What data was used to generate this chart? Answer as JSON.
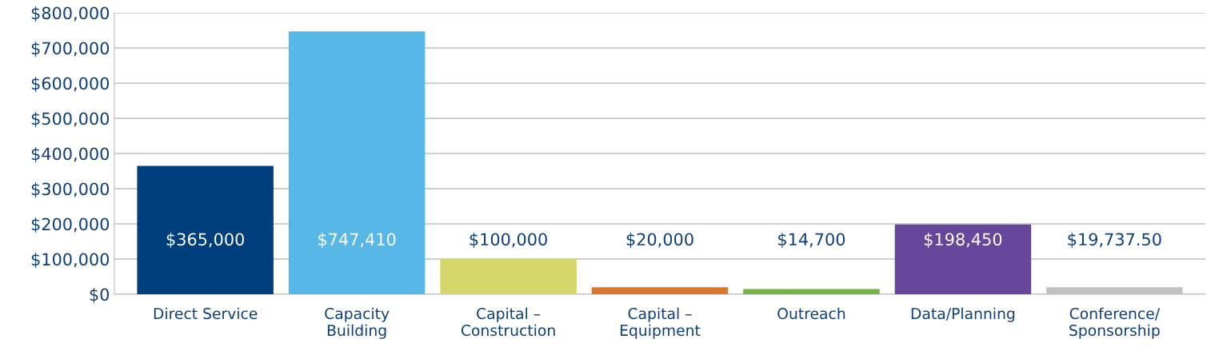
{
  "chart_data": {
    "type": "bar",
    "categories": [
      "Direct Service",
      "Capacity\nBuilding",
      "Capital –\nConstruction",
      "Capital –\nEquipment",
      "Outreach",
      "Data/Planning",
      "Conference/\nSponsorship"
    ],
    "values": [
      365000,
      747410,
      100000,
      20000,
      14700,
      198450,
      19737.5
    ],
    "colors": [
      "#003f7d",
      "#57b7e7",
      "#d4d86a",
      "#d9782d",
      "#70b544",
      "#66479c",
      "#c0c0c0"
    ],
    "value_labels": [
      "$365,000",
      "$747,410",
      "$100,000",
      "$20,000",
      "$14,700",
      "$198,450",
      "$19,737.50"
    ],
    "ylim": [
      0,
      800000
    ],
    "yticks": [
      {
        "value": 0,
        "label": "$0"
      },
      {
        "value": 100000,
        "label": "$100,000"
      },
      {
        "value": 200000,
        "label": "$200,000"
      },
      {
        "value": 300000,
        "label": "$300,000"
      },
      {
        "value": 400000,
        "label": "$400,000"
      },
      {
        "value": 500000,
        "label": "$500,000"
      },
      {
        "value": 600000,
        "label": "$600,000"
      },
      {
        "value": 700000,
        "label": "$700,000"
      },
      {
        "value": 800000,
        "label": "$800,000"
      }
    ],
    "grid": "y"
  }
}
